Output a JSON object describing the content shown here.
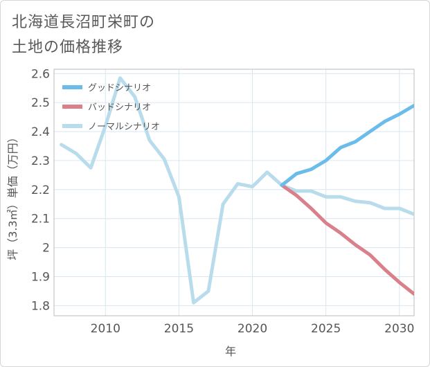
{
  "chart_data": {
    "type": "line",
    "title_lines": [
      "北海道長沼町栄町の",
      "土地の価格推移"
    ],
    "xlabel": "年",
    "ylabel": "坪（3.3㎡）単価（万円）",
    "xlim": [
      2006.5,
      2031
    ],
    "ylim": [
      1.765,
      2.615
    ],
    "xticks": [
      2010,
      2015,
      2020,
      2025,
      2030
    ],
    "xtick_labels": [
      "2010",
      "2015",
      "2020",
      "2025",
      "2030"
    ],
    "yticks": [
      1.8,
      1.9,
      2.0,
      2.1,
      2.2,
      2.3,
      2.4,
      2.5,
      2.6
    ],
    "ytick_labels": [
      "1.8",
      "1.9",
      "2",
      "2.1",
      "2.2",
      "2.3",
      "2.4",
      "2.5",
      "2.6"
    ],
    "grid": true,
    "legend_position": "top-left",
    "series": [
      {
        "name": "グッドシナリオ",
        "color": "#6bbcea",
        "x": [
          2022,
          2023,
          2024,
          2025,
          2026,
          2027,
          2028,
          2029,
          2030,
          2031
        ],
        "values": [
          2.215,
          2.255,
          2.27,
          2.3,
          2.345,
          2.365,
          2.4,
          2.435,
          2.46,
          2.49
        ]
      },
      {
        "name": "バッドシナリオ",
        "color": "#d9808a",
        "x": [
          2022,
          2023,
          2024,
          2025,
          2026,
          2027,
          2028,
          2029,
          2030,
          2031
        ],
        "values": [
          2.215,
          2.18,
          2.135,
          2.085,
          2.05,
          2.01,
          1.975,
          1.925,
          1.88,
          1.84
        ]
      },
      {
        "name": "ノーマルシナリオ",
        "color": "#b8dcec",
        "x": [
          2007,
          2008,
          2009,
          2010,
          2011,
          2012,
          2013,
          2014,
          2015,
          2016,
          2017,
          2018,
          2019,
          2020,
          2021,
          2022,
          2023,
          2024,
          2025,
          2026,
          2027,
          2028,
          2029,
          2030,
          2031
        ],
        "values": [
          2.355,
          2.325,
          2.275,
          2.42,
          2.585,
          2.52,
          2.37,
          2.305,
          2.175,
          1.81,
          1.85,
          2.15,
          2.22,
          2.21,
          2.26,
          2.215,
          2.195,
          2.195,
          2.175,
          2.175,
          2.16,
          2.155,
          2.135,
          2.135,
          2.115
        ]
      }
    ]
  }
}
